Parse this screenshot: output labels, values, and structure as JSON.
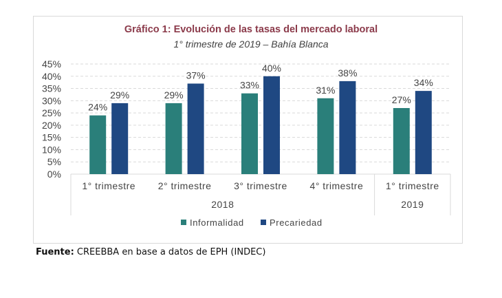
{
  "colors": {
    "informalidad": "#2a7f7a",
    "precariedad": "#1f4882",
    "title": "#8b3a4a",
    "grid": "#d9d9d9",
    "text": "#444444"
  },
  "chart_data": {
    "type": "bar",
    "title": "Gráfico 1: Evolución de las tasas del mercado laboral",
    "subtitle": "1° trimestre de 2019 – Bahía Blanca",
    "categories": [
      "1° trimestre",
      "2° trimestre",
      "3° trimestre",
      "4° trimestre",
      "1° trimestre"
    ],
    "groups": [
      {
        "label": "2018",
        "categories": [
          0,
          1,
          2,
          3
        ]
      },
      {
        "label": "2019",
        "categories": [
          4
        ]
      }
    ],
    "series": [
      {
        "name": "Informalidad",
        "values": [
          24,
          29,
          33,
          31,
          27
        ],
        "labels": [
          "24%",
          "29%",
          "33%",
          "31%",
          "27%"
        ]
      },
      {
        "name": "Precariedad",
        "values": [
          29,
          37,
          40,
          38,
          34
        ],
        "labels": [
          "29%",
          "37%",
          "40%",
          "38%",
          "34%"
        ]
      }
    ],
    "yticks": [
      "0%",
      "5%",
      "10%",
      "15%",
      "20%",
      "25%",
      "30%",
      "35%",
      "40%",
      "45%"
    ],
    "ylim": [
      0,
      45
    ],
    "grid": true,
    "legend": "bottom"
  },
  "source": {
    "label": "Fuente:",
    "text": " CREEBBA en base a datos de EPH (INDEC)"
  }
}
